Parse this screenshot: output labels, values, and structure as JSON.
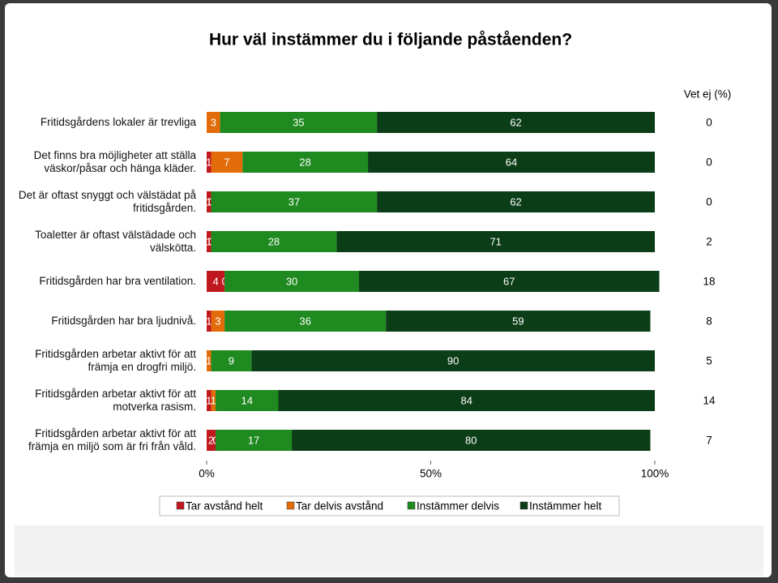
{
  "chart_data": {
    "type": "stacked-bar-horizontal",
    "title": "Hur väl instämmer du i följande påståenden?",
    "categories": [
      "Fritidsgårdens lokaler är trevliga",
      "Det finns bra möjligheter att ställa väskor/påsar och hänga kläder.",
      "Det är oftast snyggt och välstädat på fritidsgården.",
      "Toaletter är oftast välstädade och välskötta.",
      "Fritidsgården har bra ventilation.",
      "Fritidsgården har bra ljudnivå.",
      "Fritidsgården arbetar aktivt för att främja en drogfri miljö.",
      "Fritidsgården arbetar aktivt för att motverka rasism.",
      "Fritidsgården arbetar aktivt för att främja en miljö som är fri från våld."
    ],
    "series": [
      {
        "name": "Tar avstånd helt",
        "color": "#c0181f",
        "values": [
          0,
          1,
          1,
          1,
          4,
          1,
          0,
          1,
          2
        ]
      },
      {
        "name": "Tar delvis avstånd",
        "color": "#e36c0a",
        "values": [
          3,
          7,
          0,
          0,
          0,
          3,
          1,
          1,
          0
        ]
      },
      {
        "name": "Instämmer delvis",
        "color": "#1f8a1f",
        "values": [
          35,
          28,
          37,
          28,
          30,
          36,
          9,
          14,
          17
        ]
      },
      {
        "name": "Instämmer helt",
        "color": "#0b3d17",
        "values": [
          62,
          64,
          62,
          71,
          67,
          59,
          90,
          84,
          80
        ]
      }
    ],
    "extra_label": "Vet ej (%)",
    "extra_values": [
      0,
      0,
      0,
      2,
      18,
      8,
      5,
      14,
      7
    ],
    "xlim": [
      0,
      100
    ],
    "xticks": [
      {
        "value": 0,
        "label": "0%"
      },
      {
        "value": 50,
        "label": "50%"
      },
      {
        "value": 100,
        "label": "100%"
      }
    ]
  }
}
